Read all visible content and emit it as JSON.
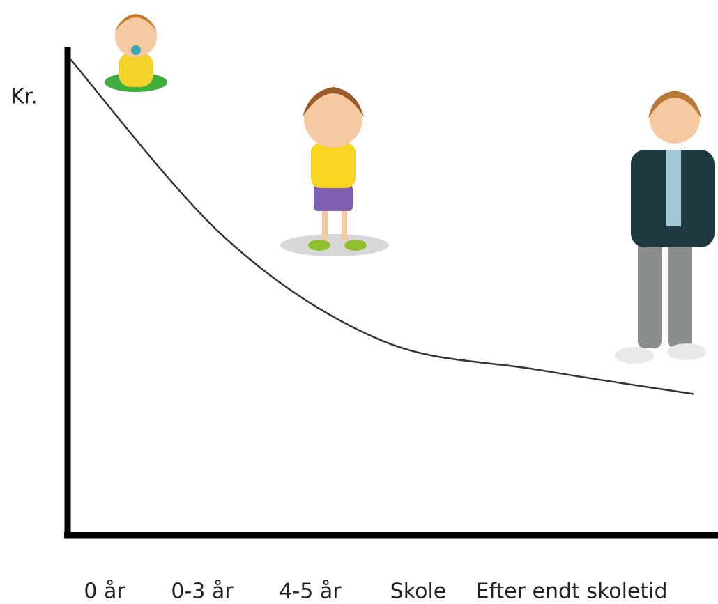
{
  "chart_data": {
    "type": "line",
    "ylabel": "Kr.",
    "categories": [
      "0 år",
      "0-3 år",
      "4-5 år",
      "Skole",
      "Efter endt skoletid"
    ],
    "values": [
      98,
      61,
      40,
      34,
      29
    ],
    "color": "#333333",
    "ylim": [
      0,
      100
    ]
  }
}
